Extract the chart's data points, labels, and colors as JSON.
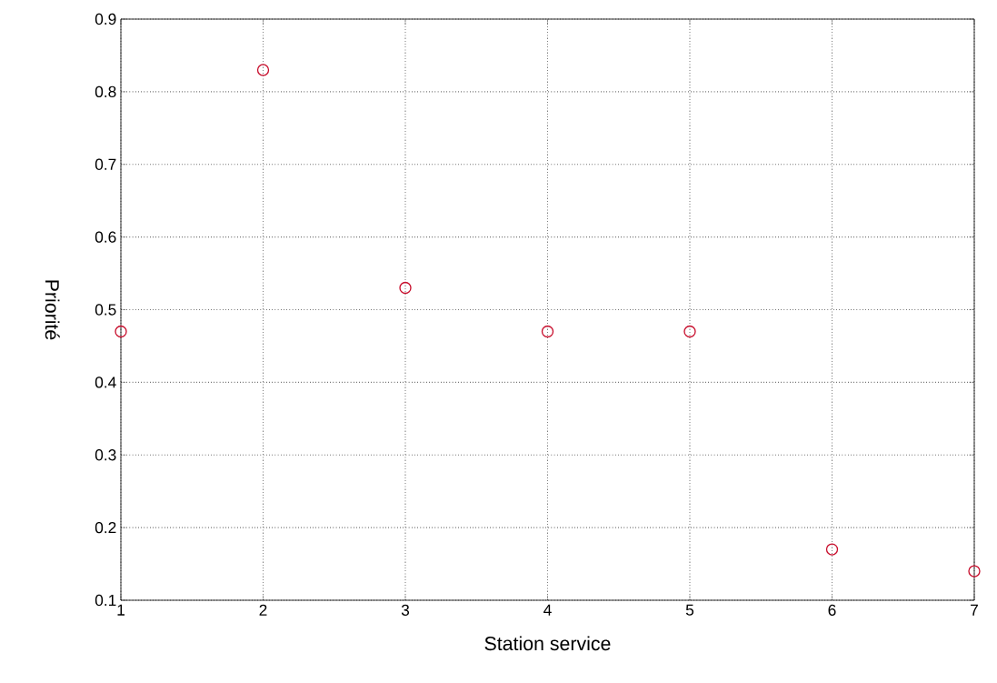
{
  "chart_data": {
    "type": "scatter",
    "xlabel": "Station service",
    "ylabel": "Priorité",
    "x": [
      1,
      2,
      3,
      4,
      5,
      6,
      7
    ],
    "values": [
      0.47,
      0.83,
      0.53,
      0.47,
      0.47,
      0.17,
      0.14
    ],
    "color": "#c8102e",
    "marker": "circle",
    "xlim": [
      1,
      7
    ],
    "xticks": [
      1,
      2,
      3,
      4,
      5,
      6,
      7
    ],
    "ylim": [
      0.1,
      0.9
    ],
    "yticks": [
      0.1,
      0.2,
      0.3,
      0.4,
      0.5,
      0.6,
      0.7,
      0.8,
      0.9
    ],
    "grid": true
  }
}
